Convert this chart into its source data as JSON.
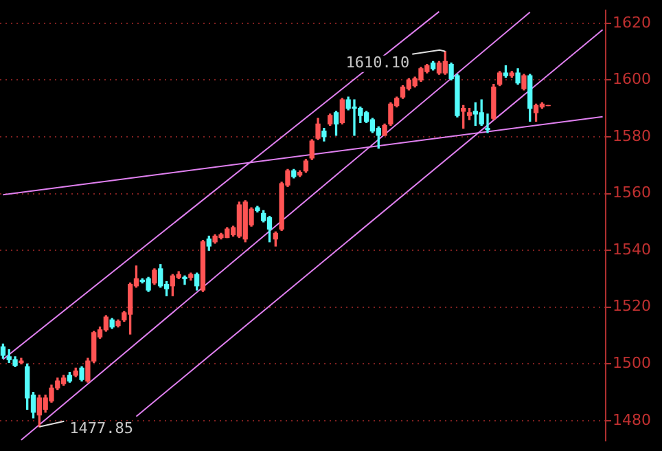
{
  "chart_data": {
    "type": "candlestick",
    "categories": [
      null,
      null,
      null,
      null,
      null,
      null,
      null,
      null,
      null,
      null,
      null,
      null,
      null,
      null,
      null,
      null,
      null,
      null,
      null,
      null,
      null,
      null,
      null,
      null,
      null,
      null,
      null,
      null,
      null,
      null,
      null,
      null,
      null,
      null,
      null,
      null,
      null,
      null,
      null,
      null,
      null,
      null,
      null,
      null,
      null,
      null,
      null,
      null,
      null,
      null,
      null,
      null,
      null,
      null,
      null,
      null,
      null,
      null,
      null,
      null,
      null,
      null,
      null,
      null,
      null,
      null,
      null,
      null,
      null,
      null,
      null,
      null,
      null,
      null,
      null,
      null,
      null,
      null,
      null,
      null,
      null,
      null,
      null,
      null,
      null,
      null,
      null,
      null,
      null,
      null,
      null,
      null,
      null,
      null,
      null,
      null,
      null,
      null,
      null,
      null
    ],
    "ohlc": [
      [
        1506,
        1507,
        1502,
        1503
      ],
      [
        1502.5,
        1505,
        1500.5,
        1501.5
      ],
      [
        1501.5,
        1502.5,
        1499,
        1499.5
      ],
      [
        1500.5,
        1502,
        1500,
        1501
      ],
      [
        1499,
        1500,
        1484,
        1488
      ],
      [
        1489,
        1490,
        1481,
        1483
      ],
      [
        1482,
        1489,
        1477.85,
        1488
      ],
      [
        1484,
        1489,
        1483,
        1488
      ],
      [
        1487,
        1492.5,
        1486.5,
        1491.5
      ],
      [
        1491.5,
        1495,
        1491,
        1494
      ],
      [
        1493,
        1496,
        1492.5,
        1495
      ],
      [
        1496,
        1497,
        1493.5,
        1494
      ],
      [
        1496,
        1498.5,
        1495.5,
        1497.5
      ],
      [
        1498.5,
        1499,
        1494,
        1494.5
      ],
      [
        1494,
        1502,
        1493.5,
        1501
      ],
      [
        1501,
        1511.5,
        1500.5,
        1511
      ],
      [
        1509.5,
        1513,
        1509,
        1512
      ],
      [
        1512,
        1517,
        1511.5,
        1516.5
      ],
      [
        1515.5,
        1516,
        1512.5,
        1513
      ],
      [
        1513.5,
        1515.5,
        1513,
        1515
      ],
      [
        1515.5,
        1518.5,
        1515,
        1518
      ],
      [
        1517.5,
        1528.5,
        1510.5,
        1528
      ],
      [
        1527.5,
        1534.5,
        1527,
        1530
      ],
      [
        1529.5,
        1530,
        1528.5,
        1529
      ],
      [
        1530,
        1530.5,
        1525.5,
        1526
      ],
      [
        1528.5,
        1533.5,
        1528,
        1533
      ],
      [
        1533.5,
        1535,
        1527,
        1527.5
      ],
      [
        1528,
        1529,
        1524,
        1526.5
      ],
      [
        1527.5,
        1531.5,
        1524,
        1531
      ],
      [
        1530.5,
        1532.5,
        1530,
        1531.5
      ],
      [
        1530.5,
        1531,
        1528,
        1530
      ],
      [
        1530.5,
        1532,
        1529.5,
        1531.5
      ],
      [
        1531.5,
        1532,
        1526,
        1527.5
      ],
      [
        1526,
        1543.5,
        1525.5,
        1543
      ],
      [
        1544,
        1545,
        1540,
        1541.5
      ],
      [
        1543,
        1545.5,
        1542.5,
        1545
      ],
      [
        1544.5,
        1546,
        1544,
        1545.5
      ],
      [
        1544.5,
        1548,
        1544.5,
        1547.5
      ],
      [
        1545.5,
        1548.5,
        1545,
        1548
      ],
      [
        1545,
        1557,
        1544.5,
        1556
      ],
      [
        1544,
        1557.5,
        1543,
        1557
      ],
      [
        1549,
        1555,
        1548.5,
        1554.5
      ],
      [
        1555,
        1555.5,
        1553.5,
        1554
      ],
      [
        1553,
        1554,
        1550,
        1550.5
      ],
      [
        1551.5,
        1552,
        1543,
        1547.5
      ],
      [
        1544,
        1546.5,
        1541.5,
        1546
      ],
      [
        1547.5,
        1564,
        1547,
        1563.5
      ],
      [
        1563,
        1568.5,
        1562.5,
        1568
      ],
      [
        1568,
        1568.5,
        1565.5,
        1566
      ],
      [
        1566.5,
        1568,
        1566,
        1567.5
      ],
      [
        1568,
        1572,
        1567.5,
        1571.5
      ],
      [
        1572.5,
        1579,
        1572,
        1578.5
      ],
      [
        1579.5,
        1586.5,
        1579,
        1584.5
      ],
      [
        1582,
        1583,
        1578.5,
        1580
      ],
      [
        1584.5,
        1588,
        1584,
        1587.5
      ],
      [
        1588.5,
        1589,
        1580.5,
        1584.5
      ],
      [
        1585,
        1593.5,
        1584.5,
        1593
      ],
      [
        1593,
        1594,
        1589.5,
        1590
      ],
      [
        1590.5,
        1593,
        1580.5,
        1590
      ],
      [
        1590,
        1590.5,
        1585,
        1587.5
      ],
      [
        1588.5,
        1589,
        1585,
        1585.5
      ],
      [
        1586,
        1586.5,
        1581.5,
        1582
      ],
      [
        1583,
        1583.5,
        1576,
        1580.5
      ],
      [
        1580.5,
        1584.5,
        1580.5,
        1584
      ],
      [
        1584.5,
        1592,
        1584,
        1591.5
      ],
      [
        1591,
        1594,
        1590.5,
        1593.5
      ],
      [
        1594,
        1598,
        1593.5,
        1597.5
      ],
      [
        1597,
        1600.5,
        1596.5,
        1600
      ],
      [
        1598,
        1601,
        1597.5,
        1600.5
      ],
      [
        1600,
        1604.5,
        1599.5,
        1604
      ],
      [
        1603,
        1605.5,
        1602.5,
        1605
      ],
      [
        1606,
        1606.5,
        1603.5,
        1604
      ],
      [
        1602.5,
        1606.5,
        1602,
        1606
      ],
      [
        1602.5,
        1610.1,
        1602,
        1606.5
      ],
      [
        1605.5,
        1606,
        1600,
        1600.5
      ],
      [
        1601.5,
        1602,
        1587,
        1587.5
      ],
      [
        1589,
        1591,
        1583,
        1590
      ],
      [
        1587.5,
        1590,
        1586,
        1588.5
      ],
      [
        1589,
        1592,
        1584,
        1588
      ],
      [
        1588.5,
        1593,
        1584,
        1584.5
      ],
      [
        1583,
        1588,
        1581.5,
        1582.5
      ],
      [
        1586.5,
        1598.5,
        1586,
        1597.5
      ],
      [
        1598.5,
        1603,
        1598,
        1602.5
      ],
      [
        1602.5,
        1605,
        1601,
        1601.5
      ],
      [
        1601.5,
        1603,
        1601,
        1602.5
      ],
      [
        1602.5,
        1604,
        1598.5,
        1599
      ],
      [
        1597,
        1602,
        1596.5,
        1601.5
      ],
      [
        1601.5,
        1602,
        1585.5,
        1590
      ],
      [
        1588.5,
        1591.5,
        1585.5,
        1591
      ],
      [
        1590.5,
        1592,
        1590,
        1591.5
      ],
      [
        1591,
        1591,
        1591,
        1591
      ],
      null,
      null,
      null,
      null,
      null,
      null,
      null,
      null,
      null
    ],
    "colors": [
      "#54fcfc",
      "#54fcfc",
      "#54fcfc",
      "#ff5454",
      "#54fcfc",
      "#54fcfc",
      "#ff5454",
      "#ff5454",
      "#ff5454",
      "#ff5454",
      "#ff5454",
      "#54fcfc",
      "#ff5454",
      "#54fcfc",
      "#ff5454",
      "#ff5454",
      "#ff5454",
      "#ff5454",
      "#54fcfc",
      "#ff5454",
      "#ff5454",
      "#ff5454",
      "#ff5454",
      "#54fcfc",
      "#54fcfc",
      "#ff5454",
      "#54fcfc",
      "#54fcfc",
      "#ff5454",
      "#ff5454",
      "#54fcfc",
      "#ff5454",
      "#54fcfc",
      "#ff5454",
      "#54fcfc",
      "#ff5454",
      "#ff5454",
      "#ff5454",
      "#ff5454",
      "#ff5454",
      "#ff5454",
      "#ff5454",
      "#54fcfc",
      "#54fcfc",
      "#54fcfc",
      "#ff5454",
      "#ff5454",
      "#ff5454",
      "#54fcfc",
      "#ff5454",
      "#ff5454",
      "#ff5454",
      "#ff5454",
      "#54fcfc",
      "#ff5454",
      "#54fcfc",
      "#ff5454",
      "#54fcfc",
      "#54fcfc",
      "#54fcfc",
      "#54fcfc",
      "#54fcfc",
      "#54fcfc",
      "#ff5454",
      "#ff5454",
      "#ff5454",
      "#ff5454",
      "#ff5454",
      "#ff5454",
      "#ff5454",
      "#ff5454",
      "#54fcfc",
      "#ff5454",
      "#ff5454",
      "#54fcfc",
      "#54fcfc",
      "#ff5454",
      "#ff5454",
      "#54fcfc",
      "#54fcfc",
      "#54fcfc",
      "#ff5454",
      "#ff5454",
      "#54fcfc",
      "#ff5454",
      "#54fcfc",
      "#ff5454",
      "#54fcfc",
      "#ff5454",
      "#ff5454",
      "#ff5454",
      null,
      null,
      null,
      null,
      null,
      null,
      null,
      null,
      null
    ],
    "series": [
      {
        "type": "line",
        "color": "#e080f0",
        "values": [
          1501.6,
          null,
          null,
          null,
          null,
          null,
          null,
          null,
          null,
          null,
          null,
          null,
          null,
          null,
          null,
          null,
          null,
          null,
          null,
          null,
          null,
          null,
          null,
          null,
          null,
          null,
          null,
          null,
          null,
          null,
          null,
          null,
          null,
          null,
          null,
          null,
          null,
          null,
          null,
          null,
          null,
          null,
          null,
          null,
          null,
          null,
          null,
          null,
          null,
          null,
          null,
          null,
          null,
          null,
          null,
          null,
          null,
          null,
          null,
          null,
          null,
          null,
          null,
          null,
          null,
          null,
          null,
          null,
          null,
          null,
          null,
          null,
          1624.1,
          null,
          null,
          null,
          null,
          null,
          null,
          null,
          null,
          null,
          null,
          null,
          null,
          null,
          null,
          null,
          null,
          null,
          null,
          null,
          null,
          null,
          null,
          null,
          null,
          null,
          null,
          null
        ]
      },
      {
        "type": "line",
        "color": "#e080f0",
        "values": [
          null,
          null,
          null,
          1473.2,
          null,
          null,
          null,
          null,
          null,
          null,
          null,
          null,
          null,
          null,
          null,
          null,
          null,
          null,
          null,
          null,
          null,
          null,
          null,
          null,
          null,
          null,
          null,
          null,
          null,
          null,
          null,
          null,
          null,
          null,
          null,
          null,
          null,
          null,
          null,
          null,
          null,
          null,
          null,
          null,
          null,
          null,
          null,
          null,
          null,
          null,
          null,
          null,
          null,
          null,
          null,
          null,
          null,
          null,
          null,
          null,
          null,
          null,
          null,
          null,
          null,
          null,
          null,
          null,
          null,
          null,
          null,
          null,
          null,
          null,
          null,
          null,
          null,
          null,
          null,
          null,
          null,
          null,
          null,
          null,
          null,
          null,
          null,
          1623.9,
          null,
          null,
          null,
          null,
          null,
          null,
          null,
          null,
          null,
          null,
          null,
          null
        ]
      },
      {
        "type": "line",
        "color": "#e080f0",
        "values": [
          null,
          null,
          null,
          null,
          null,
          null,
          null,
          null,
          null,
          null,
          null,
          null,
          null,
          null,
          null,
          null,
          null,
          null,
          null,
          null,
          null,
          null,
          1481.5,
          null,
          null,
          null,
          null,
          null,
          null,
          null,
          null,
          null,
          null,
          null,
          null,
          null,
          null,
          null,
          null,
          null,
          null,
          null,
          null,
          null,
          null,
          null,
          null,
          null,
          null,
          null,
          null,
          null,
          null,
          null,
          null,
          null,
          null,
          null,
          null,
          null,
          null,
          null,
          null,
          null,
          null,
          null,
          null,
          null,
          null,
          null,
          null,
          null,
          null,
          null,
          null,
          null,
          null,
          null,
          null,
          null,
          null,
          null,
          null,
          null,
          null,
          null,
          null,
          null,
          null,
          null,
          null,
          null,
          null,
          null,
          null,
          null,
          null,
          null,
          null,
          1617.7
        ]
      },
      {
        "type": "line",
        "color": "#e080f0",
        "values": [
          1559.6,
          null,
          null,
          null,
          null,
          null,
          null,
          null,
          null,
          null,
          null,
          null,
          null,
          null,
          null,
          null,
          null,
          null,
          null,
          null,
          null,
          null,
          null,
          null,
          null,
          null,
          null,
          null,
          null,
          null,
          null,
          null,
          null,
          null,
          null,
          null,
          null,
          null,
          null,
          null,
          null,
          null,
          null,
          null,
          null,
          null,
          null,
          null,
          null,
          null,
          null,
          null,
          null,
          null,
          null,
          null,
          null,
          null,
          null,
          null,
          null,
          null,
          null,
          null,
          null,
          null,
          null,
          null,
          null,
          null,
          null,
          null,
          null,
          null,
          null,
          null,
          null,
          null,
          null,
          null,
          null,
          null,
          null,
          null,
          null,
          null,
          null,
          null,
          null,
          null,
          null,
          null,
          null,
          null,
          null,
          null,
          null,
          null,
          null,
          1587.1
        ]
      }
    ],
    "ylim": [
      1473,
      1624.5
    ],
    "yticks": [
      1480,
      1500,
      1520,
      1540,
      1560,
      1580,
      1600,
      1620
    ],
    "grid": "y",
    "tick_labels": "y",
    "annotations": [
      "1610.10",
      "1477.85"
    ]
  }
}
